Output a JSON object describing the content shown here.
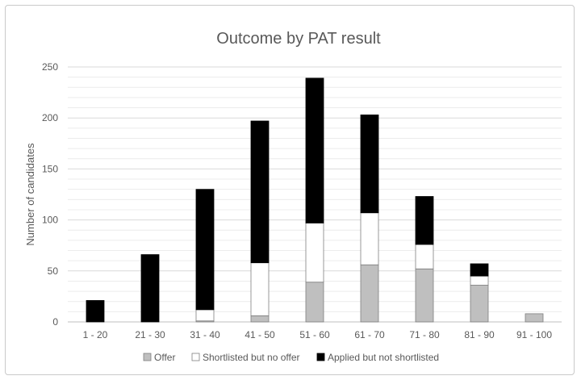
{
  "chart_data": {
    "type": "bar",
    "stacked": true,
    "title": "Outcome by PAT result",
    "xlabel": "",
    "ylabel": "Number of candidates",
    "ylim": [
      0,
      250
    ],
    "yticks": [
      0,
      50,
      100,
      150,
      200,
      250
    ],
    "grid": true,
    "legend_position": "bottom",
    "categories": [
      "1 - 20",
      "21 - 30",
      "31 - 40",
      "41 - 50",
      "51 - 60",
      "61 - 70",
      "71 - 80",
      "81 - 90",
      "91 - 100"
    ],
    "series": [
      {
        "name": "Offer",
        "color": "#bfbfbf",
        "values": [
          0,
          0,
          1,
          6,
          39,
          56,
          52,
          36,
          8
        ]
      },
      {
        "name": "Shortlisted but no offer",
        "color": "#ffffff",
        "values": [
          0,
          0,
          11,
          52,
          58,
          51,
          24,
          9,
          0
        ]
      },
      {
        "name": "Applied but not shortlisted",
        "color": "#000000",
        "values": [
          21,
          66,
          118,
          139,
          142,
          96,
          47,
          12,
          0
        ]
      }
    ]
  }
}
